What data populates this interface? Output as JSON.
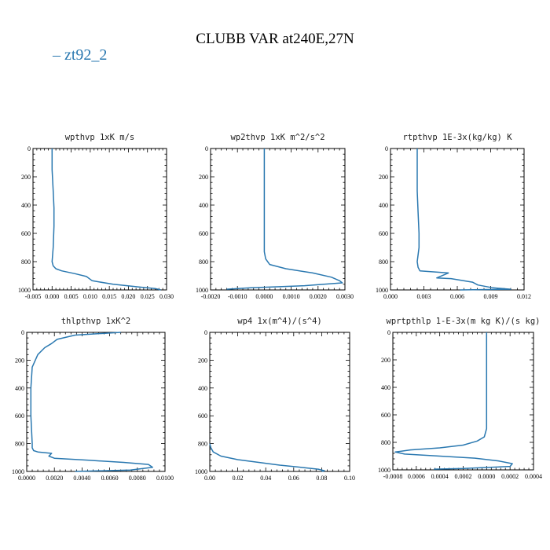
{
  "figure": {
    "title": "CLUBB VAR at240E,27N",
    "legend": {
      "label": "zt92_2",
      "color": "#2a78b0"
    }
  },
  "chart_data": [
    {
      "type": "line",
      "title": "wpthvp  1xK m/s",
      "xlim": [
        -0.005,
        0.03
      ],
      "ylim": [
        1000,
        0
      ],
      "xticks": [
        "-0.005",
        "0.000",
        "0.005",
        "0.010",
        "0.015",
        "0.020",
        "0.025",
        "0.030"
      ],
      "yticks": [
        "0",
        "200",
        "400",
        "600",
        "800",
        "1000"
      ],
      "series": [
        {
          "x": [
            0.0,
            0.0,
            0.0003,
            0.0005,
            0.0005,
            0.0003,
            0.0,
            0.0003,
            0.001,
            0.0025,
            0.006,
            0.009,
            0.0105,
            0.016,
            0.023,
            0.027,
            0.0285
          ],
          "y": [
            0,
            150,
            300,
            420,
            550,
            700,
            800,
            830,
            850,
            865,
            885,
            905,
            935,
            960,
            980,
            990,
            1000
          ]
        }
      ]
    },
    {
      "type": "line",
      "title": "wp2thvp  1xK m^2/s^2",
      "xlim": [
        -0.002,
        0.003
      ],
      "ylim": [
        1000,
        0
      ],
      "xticks": [
        "-0.0020",
        "-0.0010",
        "0.0000",
        "0.0010",
        "0.0020",
        "0.0030"
      ],
      "yticks": [
        "0",
        "200",
        "400",
        "600",
        "800",
        "1000"
      ],
      "series": [
        {
          "x": [
            0.0,
            0.0,
            0.0,
            0.0,
            5e-05,
            0.0002,
            0.0008,
            0.0018,
            0.0025,
            0.0028,
            0.0029,
            0.0015,
            -0.0005,
            -0.0014
          ],
          "y": [
            0,
            300,
            600,
            730,
            780,
            820,
            850,
            880,
            910,
            935,
            950,
            970,
            985,
            995
          ]
        }
      ]
    },
    {
      "type": "line",
      "title": "rtpthvp  1E-3x(kg/kg) K",
      "xlim": [
        -0.003,
        0.012
      ],
      "ylim": [
        1000,
        0
      ],
      "xticks": [
        "0.000",
        "0.003",
        "0.006",
        "0.009",
        "0.012"
      ],
      "yticks": [
        "0",
        "200",
        "400",
        "600",
        "800",
        "1000"
      ],
      "series": [
        {
          "x": [
            0.0,
            0.0,
            0.0001,
            0.0002,
            0.0002,
            0.0,
            0.0001,
            0.0003,
            0.0035,
            0.0022,
            0.0038,
            0.0062,
            0.0068,
            0.0085,
            0.0105,
            0.0048
          ],
          "y": [
            0,
            300,
            450,
            600,
            700,
            800,
            840,
            865,
            880,
            915,
            920,
            945,
            965,
            985,
            995,
            1000
          ]
        }
      ]
    },
    {
      "type": "line",
      "title": "thlpthvp  1xK^2",
      "xlim": [
        0.0,
        0.01
      ],
      "ylim": [
        1000,
        0
      ],
      "xticks": [
        "0.0000",
        "0.0020",
        "0.0040",
        "0.0060",
        "0.0080",
        "0.0100"
      ],
      "yticks": [
        "0",
        "200",
        "400",
        "600",
        "800",
        "1000"
      ],
      "series": [
        {
          "x": [
            0.0068,
            0.0035,
            0.0022,
            0.0018,
            0.0013,
            0.0008,
            0.0004,
            0.0003,
            0.0003,
            0.0004,
            0.0004,
            0.0005,
            0.0008,
            0.0018,
            0.0016,
            0.002,
            0.0045,
            0.007,
            0.0088,
            0.0091,
            0.0075,
            0.0035
          ],
          "y": [
            0,
            20,
            50,
            80,
            110,
            160,
            250,
            400,
            600,
            800,
            830,
            850,
            860,
            870,
            890,
            905,
            920,
            935,
            950,
            970,
            990,
            1000
          ]
        }
      ]
    },
    {
      "type": "line",
      "title": "wp4  1x(m^4)/(s^4)",
      "xlim": [
        0.0,
        0.1
      ],
      "ylim": [
        1000,
        0
      ],
      "xticks": [
        "0.00",
        "0.02",
        "0.04",
        "0.06",
        "0.08",
        "0.10"
      ],
      "yticks": [
        "0",
        "200",
        "400",
        "600",
        "800",
        "1000"
      ],
      "series": [
        {
          "x": [
            0.0,
            0.0008,
            0.0025,
            0.008,
            0.02,
            0.035,
            0.05,
            0.065,
            0.078,
            0.082,
            0.08
          ],
          "y": [
            800,
            830,
            860,
            890,
            915,
            935,
            955,
            970,
            985,
            995,
            1000
          ]
        }
      ]
    },
    {
      "type": "line",
      "title": "wprtpthlp  1-E-3x(m kg K)/(s kg)",
      "xlim": [
        -0.0008,
        0.0004
      ],
      "ylim": [
        1000,
        0
      ],
      "xticks": [
        "-0.0008",
        "0.0006",
        "0.0004",
        "0.0002",
        "0.0000",
        "0.0002",
        "0.0004"
      ],
      "yticks": [
        "0",
        "200",
        "400",
        "600",
        "800",
        "1000"
      ],
      "series": [
        {
          "x": [
            0.0,
            0.0,
            0.0,
            -2e-05,
            -8e-05,
            -0.0002,
            -0.0004,
            -0.00065,
            -0.00078,
            -0.0007,
            -0.0004,
            -0.0001,
            0.0001,
            0.00022,
            0.0002,
            -0.0002,
            -0.00045
          ],
          "y": [
            0,
            300,
            700,
            760,
            790,
            820,
            840,
            855,
            870,
            885,
            900,
            915,
            935,
            955,
            975,
            990,
            995
          ]
        }
      ]
    }
  ]
}
